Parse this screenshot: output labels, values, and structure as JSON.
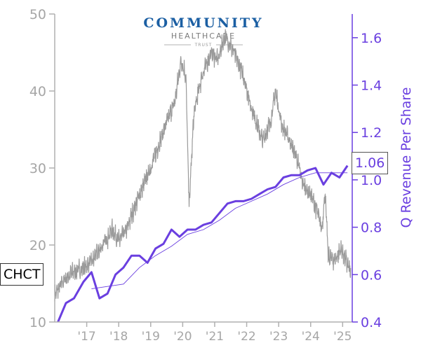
{
  "chart_data": {
    "type": "line",
    "ticker": "CHCT",
    "logo": {
      "line1": "COMMUNITY",
      "line2": "HEALTHCARE",
      "line3": "TRUST"
    },
    "x_ticks": [
      "'17",
      "'18",
      "'19",
      "'20",
      "'21",
      "'22",
      "'23",
      "'24",
      "'25"
    ],
    "x_range": [
      2016.0,
      2025.3
    ],
    "left_axis": {
      "range": [
        10,
        50
      ],
      "ticks": [
        "10",
        "20",
        "30",
        "40",
        "50"
      ]
    },
    "right_axis": {
      "label": "Q Revenue Per Share",
      "range": [
        0.4,
        1.7
      ],
      "ticks": [
        "0.4",
        "0.6",
        "0.8",
        "1.0",
        "1.2",
        "1.4",
        "1.6"
      ]
    },
    "last_value_label": "1.06",
    "colors": {
      "price": "#9a9a9a",
      "revenue": "#6a3fe0",
      "axis_left": "#b0b0b0",
      "axis_right": "#6a3fe0"
    },
    "price_anchors": [
      [
        2016.0,
        13.5
      ],
      [
        2016.3,
        15.5
      ],
      [
        2016.6,
        16.5
      ],
      [
        2016.9,
        17.0
      ],
      [
        2017.2,
        18.0
      ],
      [
        2017.5,
        20.0
      ],
      [
        2017.8,
        22.0
      ],
      [
        2018.0,
        20.5
      ],
      [
        2018.25,
        22.0
      ],
      [
        2018.5,
        25.0
      ],
      [
        2018.75,
        27.5
      ],
      [
        2019.0,
        30.0
      ],
      [
        2019.25,
        33.0
      ],
      [
        2019.5,
        36.0
      ],
      [
        2019.75,
        38.5
      ],
      [
        2019.95,
        44.0
      ],
      [
        2020.1,
        42.0
      ],
      [
        2020.2,
        25.0
      ],
      [
        2020.35,
        37.0
      ],
      [
        2020.6,
        42.0
      ],
      [
        2020.9,
        45.0
      ],
      [
        2021.1,
        44.0
      ],
      [
        2021.3,
        47.0
      ],
      [
        2021.5,
        46.0
      ],
      [
        2021.7,
        44.0
      ],
      [
        2021.9,
        42.0
      ],
      [
        2022.1,
        38.5
      ],
      [
        2022.3,
        36.0
      ],
      [
        2022.5,
        33.5
      ],
      [
        2022.75,
        36.0
      ],
      [
        2022.9,
        40.0
      ],
      [
        2023.1,
        35.5
      ],
      [
        2023.3,
        34.0
      ],
      [
        2023.55,
        31.5
      ],
      [
        2023.75,
        28.0
      ],
      [
        2024.0,
        26.5
      ],
      [
        2024.2,
        24.5
      ],
      [
        2024.35,
        22.0
      ],
      [
        2024.45,
        27.0
      ],
      [
        2024.55,
        18.5
      ],
      [
        2024.75,
        18.0
      ],
      [
        2024.95,
        19.5
      ],
      [
        2025.1,
        18.0
      ],
      [
        2025.25,
        16.5
      ]
    ],
    "revenue_q": [
      [
        2016.1,
        0.4
      ],
      [
        2016.35,
        0.48
      ],
      [
        2016.6,
        0.5
      ],
      [
        2016.9,
        0.57
      ],
      [
        2017.15,
        0.61
      ],
      [
        2017.4,
        0.5
      ],
      [
        2017.65,
        0.52
      ],
      [
        2017.9,
        0.6
      ],
      [
        2018.15,
        0.63
      ],
      [
        2018.4,
        0.68
      ],
      [
        2018.65,
        0.68
      ],
      [
        2018.9,
        0.65
      ],
      [
        2019.15,
        0.71
      ],
      [
        2019.4,
        0.73
      ],
      [
        2019.65,
        0.79
      ],
      [
        2019.9,
        0.76
      ],
      [
        2020.15,
        0.79
      ],
      [
        2020.4,
        0.79
      ],
      [
        2020.65,
        0.81
      ],
      [
        2020.9,
        0.82
      ],
      [
        2021.15,
        0.86
      ],
      [
        2021.4,
        0.9
      ],
      [
        2021.65,
        0.91
      ],
      [
        2021.9,
        0.91
      ],
      [
        2022.15,
        0.92
      ],
      [
        2022.4,
        0.94
      ],
      [
        2022.65,
        0.96
      ],
      [
        2022.9,
        0.97
      ],
      [
        2023.15,
        1.01
      ],
      [
        2023.4,
        1.02
      ],
      [
        2023.65,
        1.02
      ],
      [
        2023.9,
        1.04
      ],
      [
        2024.15,
        1.05
      ],
      [
        2024.4,
        0.98
      ],
      [
        2024.65,
        1.03
      ],
      [
        2024.9,
        1.01
      ],
      [
        2025.15,
        1.06
      ]
    ],
    "revenue_ttm": [
      [
        2017.15,
        0.54
      ],
      [
        2017.65,
        0.55
      ],
      [
        2018.15,
        0.56
      ],
      [
        2018.65,
        0.63
      ],
      [
        2019.15,
        0.68
      ],
      [
        2019.65,
        0.72
      ],
      [
        2020.15,
        0.77
      ],
      [
        2020.65,
        0.79
      ],
      [
        2021.15,
        0.83
      ],
      [
        2021.65,
        0.88
      ],
      [
        2022.15,
        0.91
      ],
      [
        2022.65,
        0.94
      ],
      [
        2023.15,
        0.98
      ],
      [
        2023.65,
        1.01
      ],
      [
        2024.15,
        1.03
      ],
      [
        2024.65,
        1.03
      ],
      [
        2025.15,
        1.03
      ]
    ]
  }
}
